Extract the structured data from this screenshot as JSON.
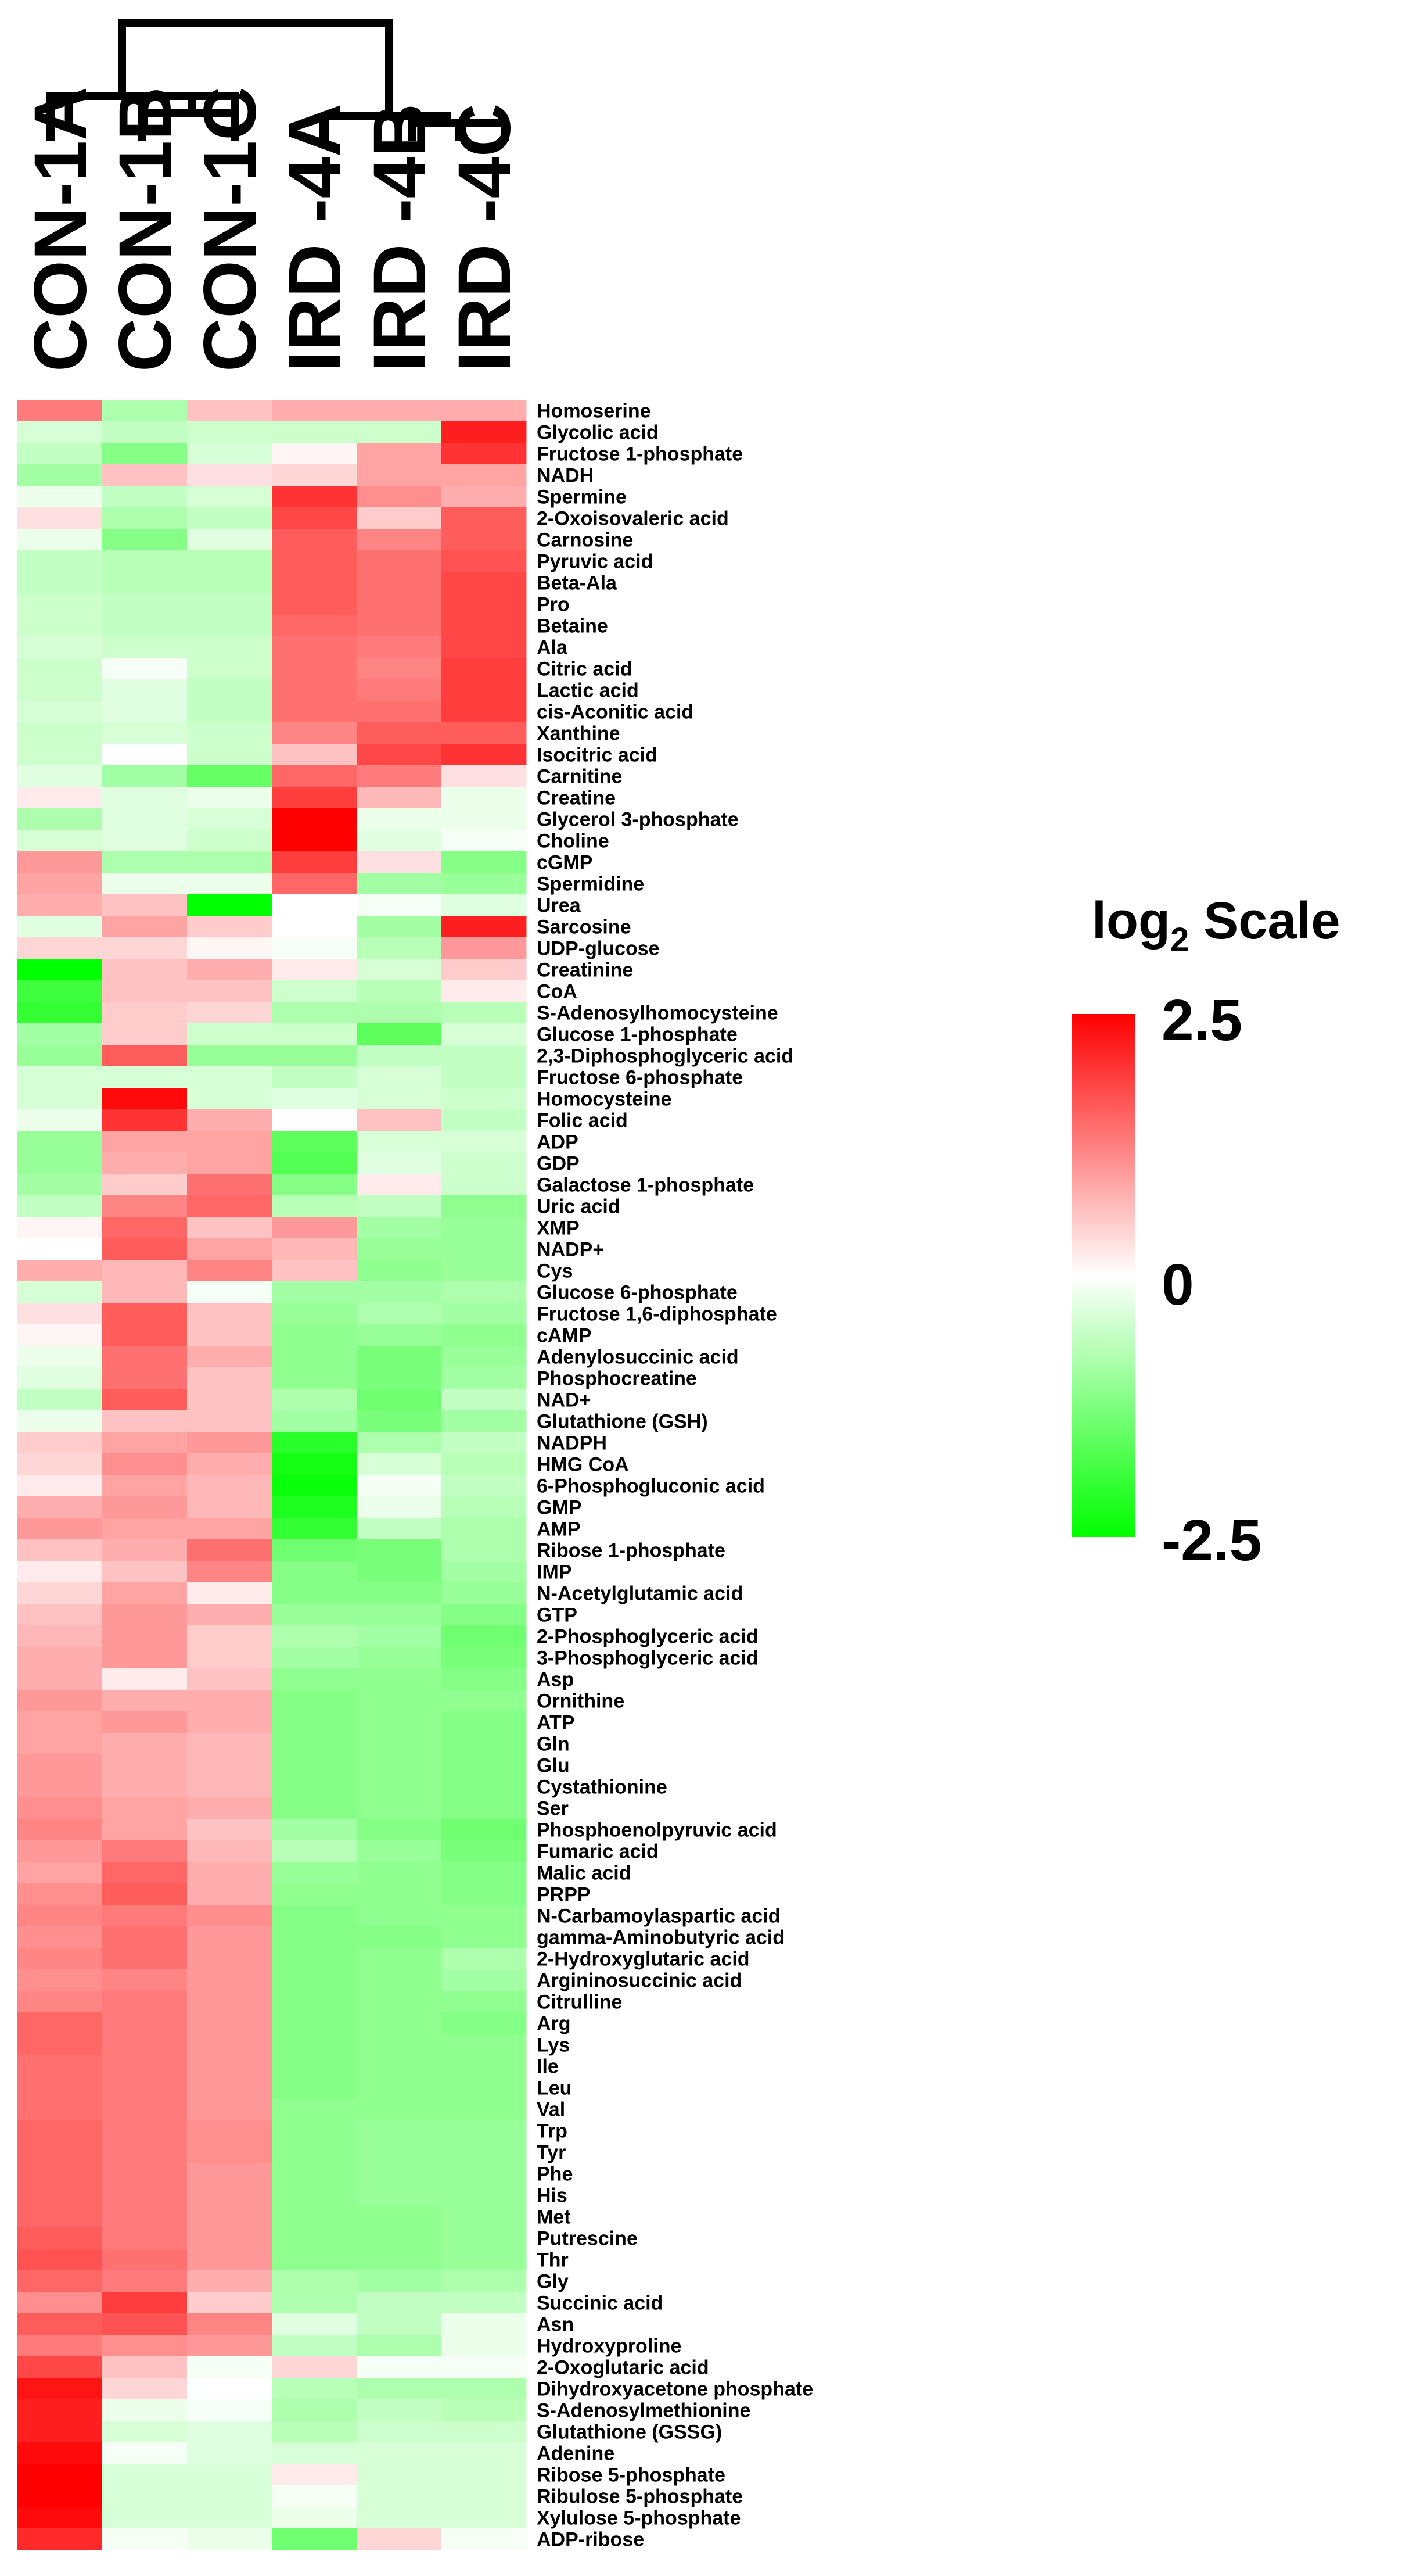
{
  "chart_data": {
    "type": "heatmap",
    "columns": [
      "CON-1A",
      "CON-1B",
      "CON-1C",
      "IRD -4A",
      "IRD -4B",
      "IRD -4C"
    ],
    "rows": [
      "Homoserine",
      "Glycolic acid",
      "Fructose 1-phosphate",
      "NADH",
      "Spermine",
      "2-Oxoisovaleric acid",
      "Carnosine",
      "Pyruvic acid",
      "Beta-Ala",
      "Pro",
      "Betaine",
      "Ala",
      "Citric acid",
      "Lactic acid",
      "cis-Aconitic acid",
      "Xanthine",
      "Isocitric acid",
      "Carnitine",
      "Creatine",
      "Glycerol 3-phosphate",
      "Choline",
      "cGMP",
      "Spermidine",
      "Urea",
      "Sarcosine",
      "UDP-glucose",
      "Creatinine",
      "CoA",
      "S-Adenosylhomocysteine",
      "Glucose 1-phosphate",
      "2,3-Diphosphoglyceric acid",
      "Fructose 6-phosphate",
      "Homocysteine",
      "Folic acid",
      "ADP",
      "GDP",
      "Galactose 1-phosphate",
      "Uric acid",
      "XMP",
      "NADP+",
      "Cys",
      "Glucose 6-phosphate",
      "Fructose 1,6-diphosphate",
      "cAMP",
      "Adenylosuccinic acid",
      "Phosphocreatine",
      "NAD+",
      "Glutathione (GSH)",
      "NADPH",
      "HMG CoA",
      "6-Phosphogluconic acid",
      "GMP",
      "AMP",
      "Ribose 1-phosphate",
      "IMP",
      "N-Acetylglutamic acid",
      "GTP",
      "2-Phosphoglyceric acid",
      "3-Phosphoglyceric acid",
      "Asp",
      "Ornithine",
      "ATP",
      "Gln",
      "Glu",
      "Cystathionine",
      "Ser",
      "Phosphoenolpyruvic acid",
      "Fumaric acid",
      "Malic acid",
      "PRPP",
      "N-Carbamoylaspartic acid",
      "gamma-Aminobutyric acid",
      "2-Hydroxyglutaric acid",
      "Argininosuccinic acid",
      "Citrulline",
      "Arg",
      "Lys",
      "Ile",
      "Leu",
      "Val",
      "Trp",
      "Tyr",
      "Phe",
      "His",
      "Met",
      "Putrescine",
      "Thr",
      "Gly",
      "Succinic acid",
      "Asn",
      "Hydroxyproline",
      "2-Oxoglutaric acid",
      "Dihydroxyacetone phosphate",
      "S-Adenosylmethionine",
      "Glutathione (GSSG)",
      "Adenine",
      "Ribose 5-phosphate",
      "Ribulose 5-phosphate",
      "Xylulose 5-phosphate",
      "ADP-ribose"
    ],
    "values": [
      [
        1.3,
        -0.8,
        0.6,
        0.8,
        0.8,
        0.8
      ],
      [
        -0.4,
        -0.6,
        -0.5,
        -0.5,
        -0.5,
        2.2
      ],
      [
        -0.6,
        -1.2,
        -0.4,
        0.1,
        0.9,
        2.0
      ],
      [
        -0.9,
        0.6,
        0.3,
        0.4,
        0.9,
        0.9
      ],
      [
        -0.2,
        -0.6,
        -0.4,
        2.0,
        1.1,
        0.8
      ],
      [
        0.3,
        -0.8,
        -0.6,
        1.8,
        0.5,
        1.6
      ],
      [
        -0.2,
        -1.2,
        -0.3,
        1.6,
        1.2,
        1.6
      ],
      [
        -0.6,
        -0.7,
        -0.7,
        1.6,
        1.4,
        1.7
      ],
      [
        -0.6,
        -0.7,
        -0.7,
        1.6,
        1.4,
        1.8
      ],
      [
        -0.5,
        -0.6,
        -0.6,
        1.6,
        1.4,
        1.8
      ],
      [
        -0.5,
        -0.6,
        -0.6,
        1.5,
        1.4,
        1.8
      ],
      [
        -0.4,
        -0.5,
        -0.5,
        1.4,
        1.3,
        1.8
      ],
      [
        -0.5,
        -0.1,
        -0.5,
        1.4,
        1.2,
        1.9
      ],
      [
        -0.5,
        -0.3,
        -0.6,
        1.4,
        1.3,
        1.9
      ],
      [
        -0.4,
        -0.3,
        -0.6,
        1.4,
        1.4,
        1.9
      ],
      [
        -0.5,
        -0.4,
        -0.5,
        1.2,
        1.6,
        1.6
      ],
      [
        -0.5,
        0.0,
        -0.5,
        0.6,
        1.8,
        2.0
      ],
      [
        -0.3,
        -0.9,
        -1.5,
        1.5,
        1.3,
        0.3
      ],
      [
        0.2,
        -0.3,
        -0.2,
        1.9,
        0.7,
        -0.2
      ],
      [
        -0.8,
        -0.3,
        -0.4,
        2.5,
        -0.2,
        -0.2
      ],
      [
        -0.4,
        -0.3,
        -0.5,
        2.5,
        -0.3,
        -0.1
      ],
      [
        1.0,
        -0.8,
        -0.8,
        1.9,
        0.3,
        -1.2
      ],
      [
        0.9,
        -0.2,
        -0.2,
        1.5,
        -0.9,
        -1.0
      ],
      [
        0.8,
        0.6,
        -2.5,
        0.0,
        -0.1,
        -0.3
      ],
      [
        -0.3,
        0.9,
        0.5,
        0.0,
        -0.9,
        2.2
      ],
      [
        0.4,
        0.4,
        0.1,
        -0.1,
        -0.7,
        1.0
      ],
      [
        -2.5,
        0.6,
        0.8,
        0.2,
        -0.4,
        0.5
      ],
      [
        -1.9,
        0.6,
        0.6,
        -0.5,
        -0.7,
        0.2
      ],
      [
        -2.0,
        0.5,
        0.4,
        -0.8,
        -0.8,
        -0.7
      ],
      [
        -0.9,
        0.5,
        -0.5,
        -0.5,
        -1.6,
        -0.4
      ],
      [
        -1.0,
        1.6,
        -1.0,
        -1.0,
        -0.6,
        -0.6
      ],
      [
        -0.4,
        -0.4,
        -0.4,
        -0.6,
        -0.4,
        -0.6
      ],
      [
        -0.4,
        2.4,
        -0.4,
        -0.3,
        -0.4,
        -0.5
      ],
      [
        -0.2,
        2.0,
        0.8,
        0.0,
        0.6,
        -0.6
      ],
      [
        -1.0,
        0.9,
        0.9,
        -1.6,
        -0.4,
        -0.4
      ],
      [
        -1.0,
        0.8,
        0.9,
        -1.7,
        -0.3,
        -0.5
      ],
      [
        -0.9,
        0.5,
        1.4,
        -1.2,
        0.2,
        -0.5
      ],
      [
        -0.6,
        1.2,
        1.5,
        -0.7,
        -0.6,
        -1.1
      ],
      [
        0.1,
        1.5,
        0.6,
        1.0,
        -0.9,
        -1.0
      ],
      [
        0.0,
        1.6,
        0.9,
        0.7,
        -1.0,
        -1.0
      ],
      [
        0.8,
        0.7,
        1.2,
        0.6,
        -1.1,
        -1.0
      ],
      [
        -0.4,
        0.7,
        -0.1,
        -0.9,
        -0.9,
        -0.8
      ],
      [
        0.3,
        1.6,
        0.6,
        -1.0,
        -0.8,
        -0.9
      ],
      [
        0.1,
        1.6,
        0.6,
        -1.1,
        -1.0,
        -1.1
      ],
      [
        -0.2,
        1.4,
        0.8,
        -1.1,
        -1.3,
        -1.0
      ],
      [
        -0.3,
        1.4,
        0.6,
        -1.1,
        -1.3,
        -0.9
      ],
      [
        -0.6,
        1.6,
        0.6,
        -0.8,
        -1.4,
        -0.6
      ],
      [
        -0.2,
        0.6,
        0.6,
        -0.9,
        -1.3,
        -0.9
      ],
      [
        0.5,
        0.9,
        1.0,
        -2.1,
        -0.8,
        -0.6
      ],
      [
        0.4,
        1.1,
        0.8,
        -2.3,
        -0.4,
        -0.7
      ],
      [
        0.2,
        0.9,
        0.7,
        -2.4,
        -0.1,
        -0.6
      ],
      [
        0.8,
        1.0,
        0.7,
        -2.2,
        -0.2,
        -0.7
      ],
      [
        1.0,
        0.9,
        0.9,
        -2.0,
        -0.6,
        -0.8
      ],
      [
        0.6,
        0.8,
        1.4,
        -1.4,
        -1.3,
        -0.8
      ],
      [
        0.2,
        0.6,
        1.2,
        -1.2,
        -1.3,
        -0.9
      ],
      [
        0.4,
        0.9,
        0.2,
        -1.2,
        -1.2,
        -1.0
      ],
      [
        0.6,
        1.0,
        0.8,
        -1.0,
        -1.0,
        -1.2
      ],
      [
        0.7,
        1.0,
        0.5,
        -0.8,
        -0.9,
        -1.4
      ],
      [
        0.8,
        1.0,
        0.5,
        -0.9,
        -1.0,
        -1.3
      ],
      [
        0.8,
        0.2,
        0.6,
        -1.1,
        -1.1,
        -1.2
      ],
      [
        1.0,
        0.8,
        0.8,
        -1.2,
        -1.1,
        -1.1
      ],
      [
        0.9,
        1.0,
        0.8,
        -1.2,
        -1.1,
        -1.2
      ],
      [
        0.9,
        0.8,
        0.7,
        -1.2,
        -1.1,
        -1.2
      ],
      [
        1.0,
        0.8,
        0.7,
        -1.2,
        -1.1,
        -1.2
      ],
      [
        1.0,
        0.8,
        0.7,
        -1.2,
        -1.1,
        -1.2
      ],
      [
        1.1,
        0.9,
        0.8,
        -1.2,
        -1.1,
        -1.2
      ],
      [
        1.2,
        0.9,
        0.6,
        -0.9,
        -1.2,
        -1.4
      ],
      [
        1.0,
        1.3,
        0.7,
        -0.7,
        -1.0,
        -1.3
      ],
      [
        0.9,
        1.5,
        0.8,
        -1.0,
        -1.1,
        -1.2
      ],
      [
        1.1,
        1.6,
        0.8,
        -1.1,
        -1.1,
        -1.2
      ],
      [
        1.2,
        1.3,
        1.1,
        -1.2,
        -1.1,
        -1.1
      ],
      [
        1.1,
        1.4,
        1.0,
        -1.2,
        -1.2,
        -1.1
      ],
      [
        1.2,
        1.4,
        1.0,
        -1.2,
        -1.1,
        -0.8
      ],
      [
        1.1,
        1.2,
        1.0,
        -1.2,
        -1.1,
        -0.9
      ],
      [
        1.2,
        1.3,
        1.0,
        -1.2,
        -1.1,
        -1.1
      ],
      [
        1.5,
        1.3,
        1.0,
        -1.2,
        -1.1,
        -1.2
      ],
      [
        1.5,
        1.3,
        1.0,
        -1.2,
        -1.1,
        -1.1
      ],
      [
        1.4,
        1.3,
        1.0,
        -1.2,
        -1.1,
        -1.1
      ],
      [
        1.4,
        1.3,
        1.0,
        -1.2,
        -1.1,
        -1.1
      ],
      [
        1.4,
        1.3,
        1.0,
        -1.1,
        -1.1,
        -1.1
      ],
      [
        1.5,
        1.3,
        1.1,
        -1.1,
        -1.0,
        -1.0
      ],
      [
        1.5,
        1.3,
        1.1,
        -1.1,
        -1.0,
        -1.0
      ],
      [
        1.5,
        1.3,
        1.0,
        -1.1,
        -1.0,
        -1.0
      ],
      [
        1.5,
        1.3,
        1.0,
        -1.1,
        -1.0,
        -1.0
      ],
      [
        1.5,
        1.3,
        1.0,
        -1.1,
        -1.1,
        -1.0
      ],
      [
        1.6,
        1.3,
        1.0,
        -1.1,
        -1.1,
        -1.0
      ],
      [
        1.7,
        1.4,
        1.0,
        -1.1,
        -1.1,
        -1.0
      ],
      [
        1.5,
        1.3,
        0.8,
        -0.8,
        -0.9,
        -0.8
      ],
      [
        1.1,
        1.9,
        0.5,
        -0.8,
        -0.6,
        -0.6
      ],
      [
        1.6,
        1.7,
        1.2,
        -0.3,
        -0.6,
        -0.2
      ],
      [
        1.3,
        1.1,
        1.0,
        -0.6,
        -0.8,
        -0.2
      ],
      [
        1.8,
        0.6,
        -0.1,
        0.4,
        -0.1,
        -0.1
      ],
      [
        2.3,
        0.4,
        0.0,
        -0.7,
        -0.8,
        -0.8
      ],
      [
        2.2,
        -0.2,
        -0.1,
        -0.8,
        -0.6,
        -0.7
      ],
      [
        2.2,
        -0.4,
        -0.3,
        -0.7,
        -0.5,
        -0.5
      ],
      [
        2.4,
        -0.1,
        -0.3,
        -0.4,
        -0.4,
        -0.4
      ],
      [
        2.5,
        -0.4,
        -0.4,
        0.2,
        -0.4,
        -0.4
      ],
      [
        2.5,
        -0.4,
        -0.4,
        -0.1,
        -0.4,
        -0.4
      ],
      [
        2.4,
        -0.4,
        -0.4,
        -0.2,
        -0.4,
        -0.4
      ],
      [
        2.1,
        -0.1,
        -0.2,
        -1.4,
        0.4,
        -0.1
      ]
    ],
    "legend": {
      "title_main": "log",
      "title_sub": "2",
      "title_rest": " Scale",
      "max_label": "2.5",
      "mid_label": "0",
      "min_label": "-2.5",
      "min": -2.5,
      "max": 2.5,
      "placement": "right"
    },
    "colors": {
      "high": "#ff0000",
      "mid": "#ffffff",
      "low": "#00ff00"
    },
    "dendrogram": "top"
  }
}
